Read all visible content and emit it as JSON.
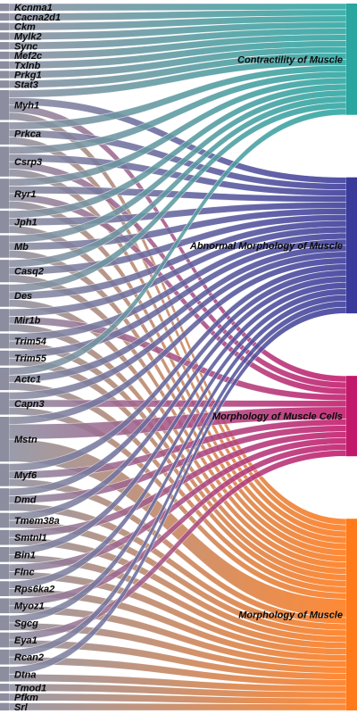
{
  "genes": [
    {
      "name": "Kcnma1",
      "links": {
        "contractility": 1
      }
    },
    {
      "name": "Cacna2d1",
      "links": {
        "contractility": 1
      }
    },
    {
      "name": "Ckm",
      "links": {
        "contractility": 1
      }
    },
    {
      "name": "Mylk2",
      "links": {
        "contractility": 1
      }
    },
    {
      "name": "Sync",
      "links": {
        "contractility": 1
      }
    },
    {
      "name": "Mef2c",
      "links": {
        "contractility": 1
      }
    },
    {
      "name": "Txlnb",
      "links": {
        "contractility": 1
      }
    },
    {
      "name": "Prkg1",
      "links": {
        "contractility": 1
      }
    },
    {
      "name": "Stat3",
      "links": {
        "contractility": 1
      }
    },
    {
      "name": "Myh1",
      "links": {
        "contractility": 1,
        "abnormal": 1,
        "cells": 1,
        "morphology": 1
      }
    },
    {
      "name": "Prkca",
      "links": {
        "contractility": 1,
        "abnormal": 1,
        "morphology": 1
      }
    },
    {
      "name": "Csrp3",
      "links": {
        "contractility": 1,
        "abnormal": 1,
        "cells": 1,
        "morphology": 1
      }
    },
    {
      "name": "Ryr1",
      "links": {
        "contractility": 1,
        "abnormal": 1,
        "cells": 1,
        "morphology": 1
      }
    },
    {
      "name": "Jph1",
      "links": {
        "contractility": 1,
        "abnormal": 1,
        "morphology": 1
      }
    },
    {
      "name": "Mb",
      "links": {
        "contractility": 1,
        "abnormal": 1,
        "morphology": 1
      }
    },
    {
      "name": "Casq2",
      "links": {
        "contractility": 1,
        "abnormal": 1,
        "morphology": 1
      }
    },
    {
      "name": "Des",
      "links": {
        "contractility": 1,
        "abnormal": 1,
        "morphology": 1
      }
    },
    {
      "name": "Mir1b",
      "links": {
        "abnormal": 1,
        "cells": 1,
        "morphology": 1
      }
    },
    {
      "name": "Trim54",
      "links": {
        "abnormal": 1,
        "morphology": 1
      }
    },
    {
      "name": "Trim55",
      "links": {
        "abnormal": 1,
        "morphology": 1
      }
    },
    {
      "name": "Actc1",
      "links": {
        "contractility": 1,
        "abnormal": 1,
        "morphology": 1
      }
    },
    {
      "name": "Capn3",
      "links": {
        "abnormal": 1,
        "cells": 1,
        "morphology": 1
      }
    },
    {
      "name": "Mstn",
      "links": {
        "abnormal": 1,
        "cells": 2,
        "morphology": 3
      }
    },
    {
      "name": "Myf6",
      "links": {
        "abnormal": 1,
        "cells": 1,
        "morphology": 1
      }
    },
    {
      "name": "Dmd",
      "links": {
        "abnormal": 1,
        "cells": 1,
        "morphology": 1
      }
    },
    {
      "name": "Tmem38a",
      "links": {
        "abnormal": 1,
        "morphology": 1
      }
    },
    {
      "name": "Smtnl1",
      "links": {
        "cells": 1,
        "morphology": 1
      }
    },
    {
      "name": "Bin1",
      "links": {
        "abnormal": 1,
        "morphology": 1
      }
    },
    {
      "name": "Flnc",
      "links": {
        "cells": 1,
        "morphology": 1
      }
    },
    {
      "name": "Rps6ka2",
      "links": {
        "abnormal": 1,
        "morphology": 1
      }
    },
    {
      "name": "Myoz1",
      "links": {
        "cells": 1,
        "morphology": 1
      }
    },
    {
      "name": "Sgcg",
      "links": {
        "abnormal": 1,
        "morphology": 1
      }
    },
    {
      "name": "Eya1",
      "links": {
        "cells": 1,
        "morphology": 1
      }
    },
    {
      "name": "Rcan2",
      "links": {
        "abnormal": 1,
        "morphology": 1
      }
    },
    {
      "name": "Dtna",
      "links": {
        "abnormal": 1,
        "morphology": 1
      }
    },
    {
      "name": "Tmod1",
      "links": {
        "morphology": 1
      }
    },
    {
      "name": "Pfkm",
      "links": {
        "morphology": 1
      }
    },
    {
      "name": "Srl",
      "links": {
        "morphology": 1
      }
    }
  ],
  "categories": [
    {
      "key": "contractility",
      "label": "Contractility of Muscle",
      "color": "#2aa5a0"
    },
    {
      "key": "abnormal",
      "label": "Abnormal Morphology of Muscle",
      "color": "#3a3a9a"
    },
    {
      "key": "cells",
      "label": "Morphology of Muscle Cells",
      "color": "#c2186b"
    },
    {
      "key": "morphology",
      "label": "Morphology of Muscle",
      "color": "#ff7a1a"
    }
  ],
  "colors": {
    "gene_node": "#8c8ea0"
  }
}
